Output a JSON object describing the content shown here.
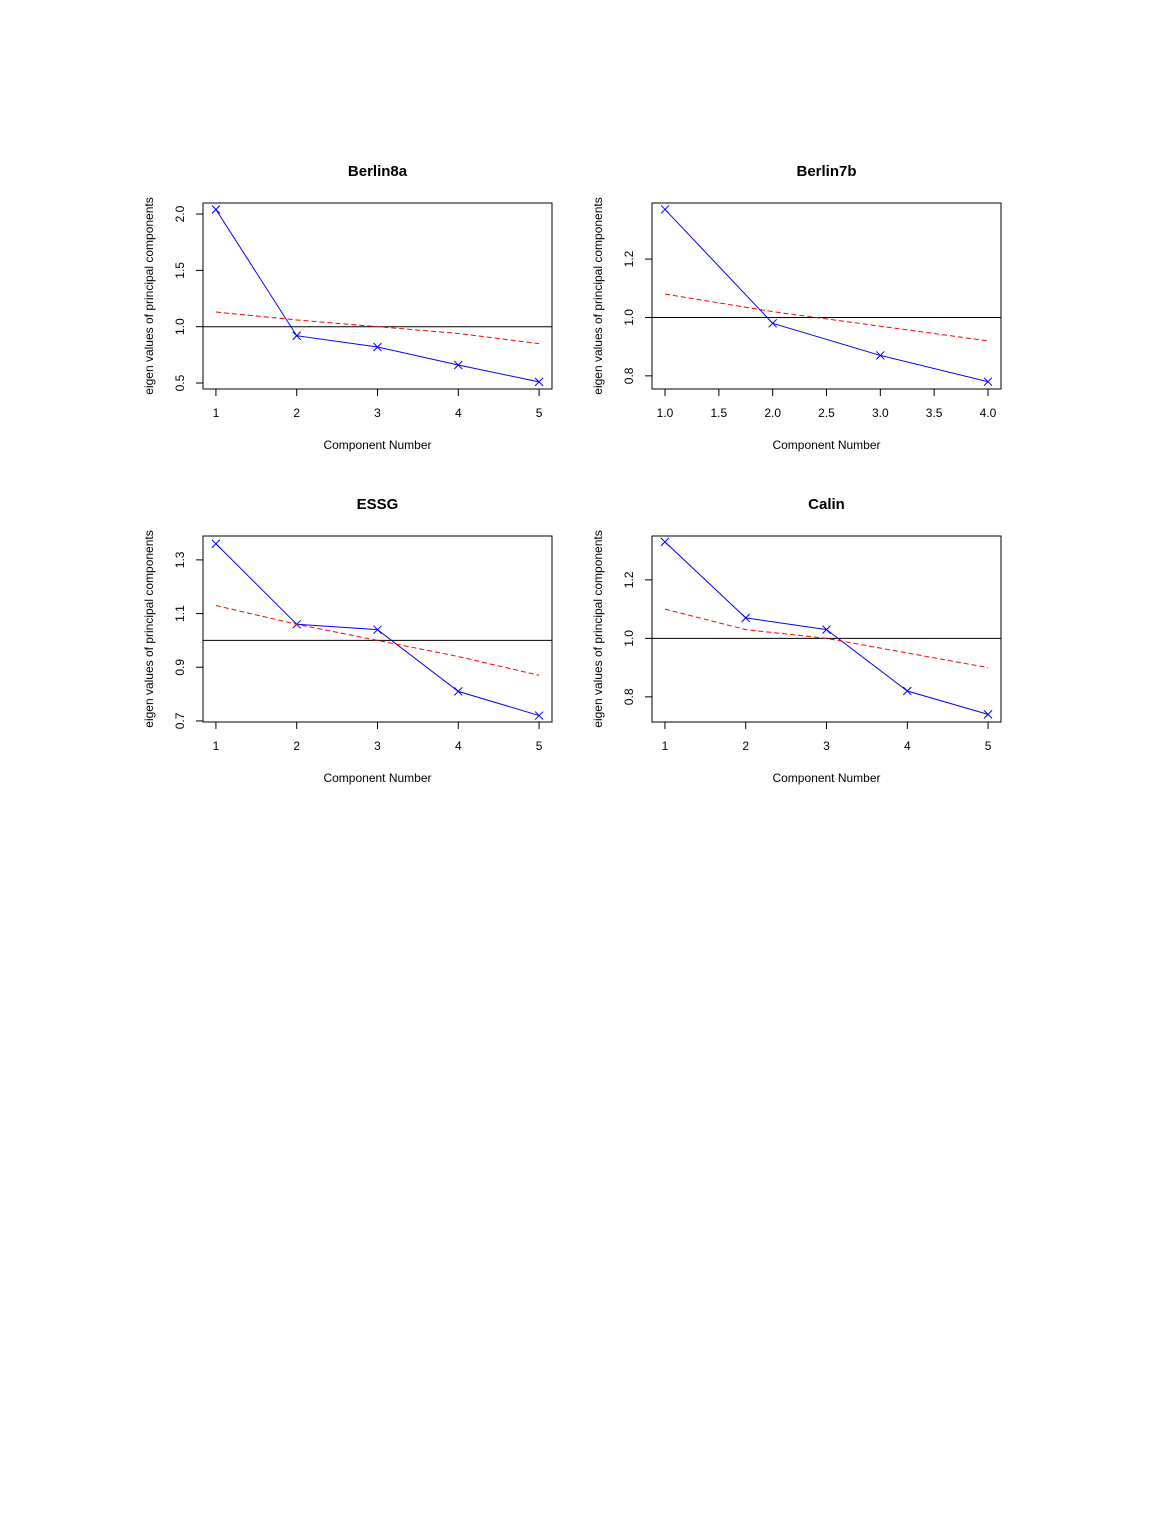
{
  "chart_data": [
    {
      "type": "line",
      "title": "Berlin8a",
      "xlabel": "Component Number",
      "ylabel": "eigen values of principal components",
      "x": [
        1,
        2,
        3,
        4,
        5
      ],
      "xlim": [
        0.84,
        5.16
      ],
      "xticks": [
        1,
        2,
        3,
        4,
        5
      ],
      "ylim": [
        0.447,
        2.098
      ],
      "yticks": [
        {
          "value": 0.5,
          "label": "0.5"
        },
        {
          "value": 1,
          "label": "1.0"
        },
        1.5,
        {
          "value": 2,
          "label": "2.0"
        }
      ],
      "hline": 1,
      "series": [
        {
          "color": "#0000ff",
          "marker": "x",
          "values": [
            2.04,
            0.92,
            0.82,
            0.66,
            0.51
          ]
        },
        {
          "color": "#ff0000",
          "dashed": true,
          "values": [
            1.13,
            1.06,
            1.0,
            0.94,
            0.85
          ]
        }
      ]
    },
    {
      "type": "line",
      "title": "Berlin7b",
      "xlabel": "Component Number",
      "ylabel": "eigen values of principal components",
      "x": [
        1,
        2,
        3,
        4
      ],
      "xlim": [
        0.879,
        4.121
      ],
      "xticks": [
        {
          "value": 1,
          "label": "1.0"
        },
        1.5,
        {
          "value": 2,
          "label": "2.0"
        },
        2.5,
        {
          "value": 3,
          "label": "3.0"
        },
        3.5,
        {
          "value": 4,
          "label": "4.0"
        }
      ],
      "ylim": [
        0.755,
        1.392
      ],
      "yticks": [
        0.8,
        {
          "value": 1,
          "label": "1.0"
        },
        1.2
      ],
      "hline": 1,
      "series": [
        {
          "color": "#0000ff",
          "marker": "x",
          "values": [
            1.37,
            0.98,
            0.87,
            0.78
          ]
        },
        {
          "color": "#ff0000",
          "dashed": true,
          "values": [
            1.08,
            1.02,
            0.97,
            0.92
          ]
        }
      ]
    },
    {
      "type": "line",
      "title": "ESSG",
      "xlabel": "Component Number",
      "ylabel": "eigen values of principal components",
      "x": [
        1,
        2,
        3,
        4,
        5
      ],
      "xlim": [
        0.84,
        5.16
      ],
      "xticks": [
        1,
        2,
        3,
        4,
        5
      ],
      "ylim": [
        0.696,
        1.389
      ],
      "yticks": [
        0.7,
        0.9,
        1.1,
        1.3
      ],
      "hline": 1,
      "series": [
        {
          "color": "#0000ff",
          "marker": "x",
          "values": [
            1.36,
            1.06,
            1.04,
            0.81,
            0.72
          ]
        },
        {
          "color": "#ff0000",
          "dashed": true,
          "values": [
            1.13,
            1.06,
            1.0,
            0.94,
            0.87
          ]
        }
      ]
    },
    {
      "type": "line",
      "title": "Calin",
      "xlabel": "Component Number",
      "ylabel": "eigen values of principal components",
      "x": [
        1,
        2,
        3,
        4,
        5
      ],
      "xlim": [
        0.84,
        5.16
      ],
      "xticks": [
        1,
        2,
        3,
        4,
        5
      ],
      "ylim": [
        0.714,
        1.35
      ],
      "yticks": [
        0.8,
        {
          "value": 1,
          "label": "1.0"
        },
        1.2
      ],
      "hline": 1,
      "series": [
        {
          "color": "#0000ff",
          "marker": "x",
          "values": [
            1.33,
            1.07,
            1.03,
            0.82,
            0.74
          ]
        },
        {
          "color": "#ff0000",
          "dashed": true,
          "values": [
            1.1,
            1.03,
            1.0,
            0.95,
            0.9
          ]
        }
      ]
    }
  ]
}
